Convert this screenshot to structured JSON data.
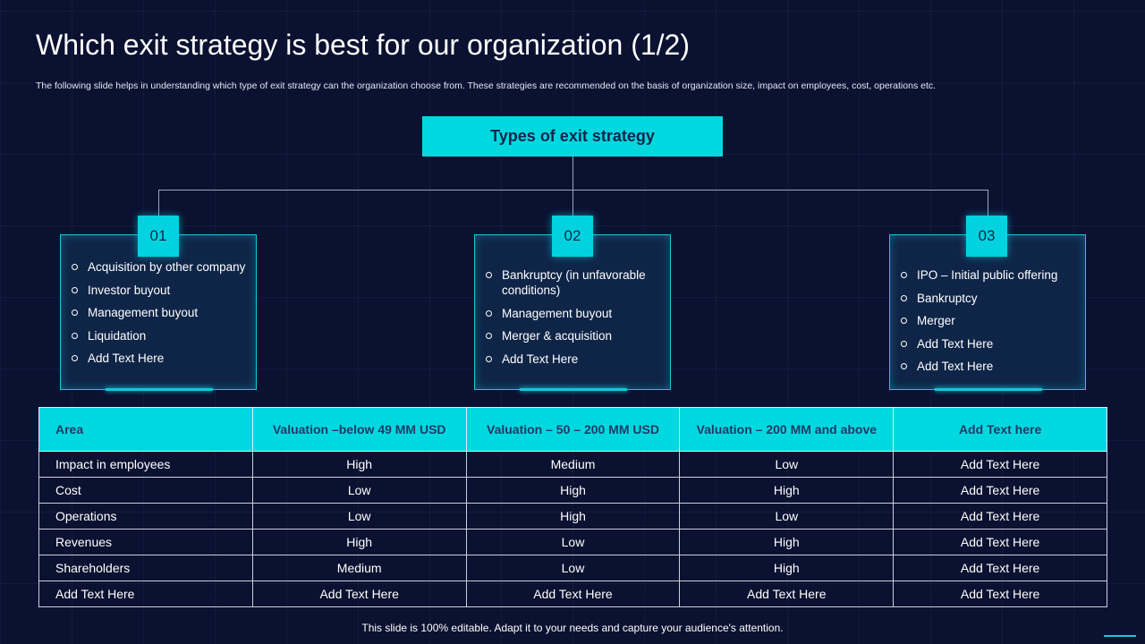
{
  "title": "Which exit strategy is best for our organization (1/2)",
  "subtitle": "The following slide helps in understanding which type of exit strategy can the organization choose from. These strategies are recommended on the basis of organization size, impact on employees, cost, operations etc.",
  "header": "Types of exit strategy",
  "cards": [
    {
      "badge": "01",
      "items": [
        "Acquisition by other company",
        "Investor buyout",
        "Management buyout",
        "Liquidation",
        "Add Text Here"
      ]
    },
    {
      "badge": "02",
      "items": [
        "Bankruptcy (in unfavorable conditions)",
        "Management buyout",
        "Merger & acquisition",
        "Add Text Here"
      ]
    },
    {
      "badge": "03",
      "items": [
        "IPO – Initial public offering",
        "Bankruptcy",
        "Merger",
        "Add Text Here",
        "Add Text Here"
      ]
    }
  ],
  "table": {
    "headers": [
      "Area",
      "Valuation –below 49 MM USD",
      "Valuation – 50 – 200 MM USD",
      "Valuation – 200 MM and above",
      "Add Text here"
    ],
    "rows": [
      [
        "Impact in employees",
        "High",
        "Medium",
        "Low",
        "Add Text Here"
      ],
      [
        "Cost",
        "Low",
        "High",
        "High",
        "Add Text Here"
      ],
      [
        "Operations",
        "Low",
        "High",
        "Low",
        "Add Text Here"
      ],
      [
        "Revenues",
        "High",
        "Low",
        "High",
        "Add Text Here"
      ],
      [
        "Shareholders",
        "Medium",
        "Low",
        "High",
        "Add Text Here"
      ],
      [
        "Add Text Here",
        "Add Text Here",
        "Add Text Here",
        "Add Text Here",
        "Add Text Here"
      ]
    ]
  },
  "footer": "This slide is 100% editable. Adapt it to your needs and capture your audience's attention.",
  "colors": {
    "background": "#0b1130",
    "accent": "#00d8e0",
    "card": "#0f2548"
  }
}
